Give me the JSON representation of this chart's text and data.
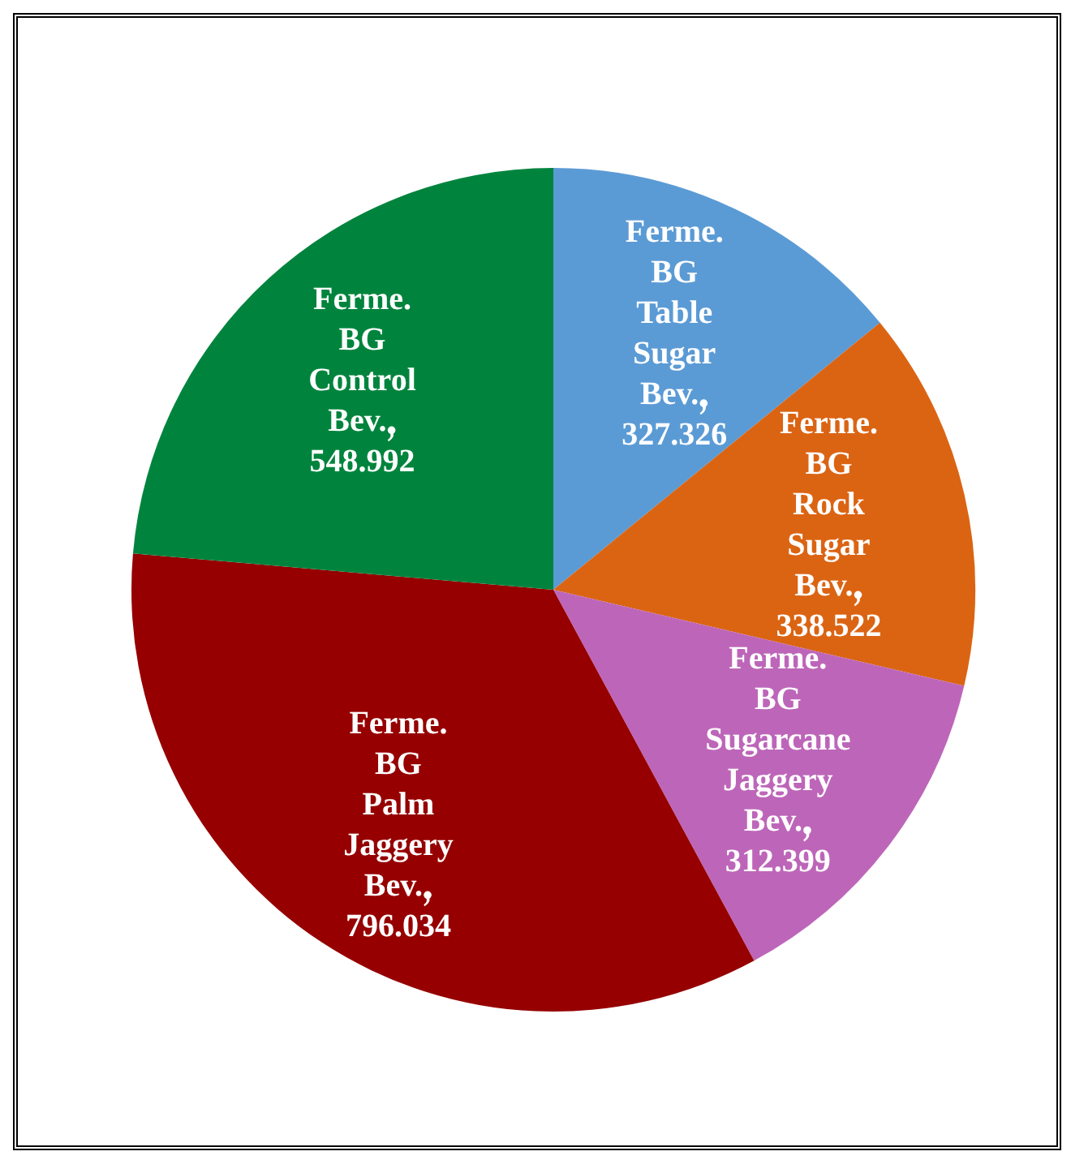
{
  "chart_data": {
    "type": "pie",
    "categories": [
      "Ferme. BG Table Sugar Bev.",
      "Ferme. BG Rock Sugar Bev.",
      "Ferme. BG Sugarcane Jaggery Bev.",
      "Ferme. BG Palm Jaggery Bev.",
      "Ferme. BG Control Bev."
    ],
    "values": [
      327.326,
      338.522,
      312.399,
      796.034,
      548.992
    ],
    "colors": [
      "#5b9bd5",
      "#db6413",
      "#bd66b9",
      "#960000",
      "#00843d"
    ],
    "data_labels": true,
    "legend": false
  }
}
